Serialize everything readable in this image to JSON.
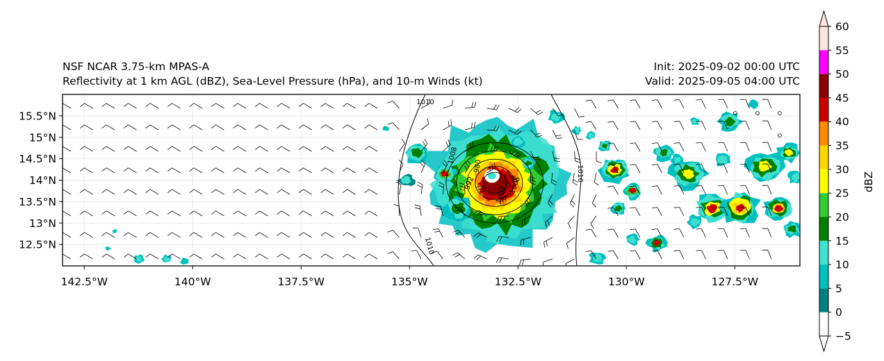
{
  "titles": {
    "left_line1": "NSF NCAR 3.75-km MPAS-A",
    "left_line2": "Reflectivity at 1 km AGL (dBZ), Sea-Level Pressure (hPa), and 10-m Winds (kt)",
    "right_line1": "Init: 2025-09-02 00:00 UTC",
    "right_line2": "Valid: 2025-09-05 04:00 UTC"
  },
  "map": {
    "lon_range": [
      -143.0,
      -126.0
    ],
    "lat_range": [
      12.0,
      16.0
    ],
    "lon_ticks": [
      {
        "value": -142.5,
        "label": "142.5°W"
      },
      {
        "value": -140.0,
        "label": "140°W"
      },
      {
        "value": -137.5,
        "label": "137.5°W"
      },
      {
        "value": -135.0,
        "label": "135°W"
      },
      {
        "value": -132.5,
        "label": "132.5°W"
      },
      {
        "value": -130.0,
        "label": "130°W"
      },
      {
        "value": -127.5,
        "label": "127.5°W"
      }
    ],
    "lat_ticks": [
      {
        "value": 12.5,
        "label": "12.5°N"
      },
      {
        "value": 13.0,
        "label": "13°N"
      },
      {
        "value": 13.5,
        "label": "13.5°N"
      },
      {
        "value": 14.0,
        "label": "14°N"
      },
      {
        "value": 14.5,
        "label": "14.5°N"
      },
      {
        "value": 15.0,
        "label": "15°N"
      },
      {
        "value": 15.5,
        "label": "15.5°N"
      }
    ],
    "storm_center": {
      "lon": -133.1,
      "lat": 14.1
    },
    "isobar_labels": [
      "1010",
      "1010",
      "1010",
      "1008",
      "1002",
      "992",
      "980",
      "1006"
    ],
    "colors": {
      "frame": "#000000",
      "isobar": "#000000",
      "barb": "#000000",
      "grid": "#ebebeb"
    }
  },
  "colorbar": {
    "label": "dBZ",
    "levels": [
      -5,
      0,
      5,
      10,
      15,
      20,
      25,
      30,
      35,
      40,
      45,
      50,
      55,
      60
    ],
    "tick_labels": [
      "−5",
      "0",
      "5",
      "10",
      "15",
      "20",
      "25",
      "30",
      "35",
      "40",
      "45",
      "50",
      "55",
      "60"
    ],
    "colors": [
      "#ffffff",
      "#008080",
      "#00bfbf",
      "#40e0d0",
      "#008000",
      "#32cd32",
      "#ffff00",
      "#ffd700",
      "#ff8c00",
      "#cc0000",
      "#8b0000",
      "#ff00ff",
      "#ffe4e1"
    ],
    "under_color": "#ffffff",
    "over_color": "#ffe4e1"
  }
}
